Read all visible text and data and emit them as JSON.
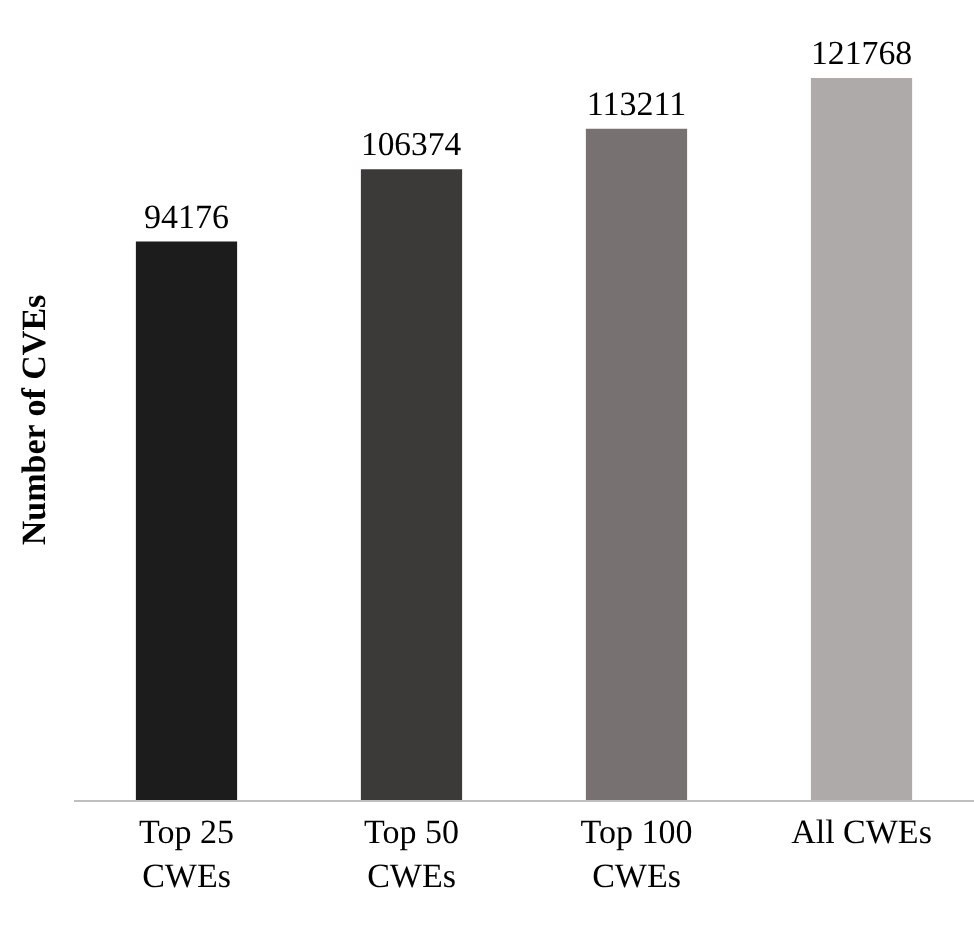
{
  "chart_data": {
    "type": "bar",
    "ylabel": "Number of CVEs",
    "categories": [
      "Top 25 CWEs",
      "Top 50 CWEs",
      "Top 100 CWEs",
      "All CWEs"
    ],
    "values": [
      94176,
      106374,
      113211,
      121768
    ],
    "colors": [
      "#1c1c1c",
      "#3b3a38",
      "#777271",
      "#aeaaa9"
    ],
    "tick_labels": "x",
    "grid": false,
    "data_labels": true,
    "legend": false
  }
}
